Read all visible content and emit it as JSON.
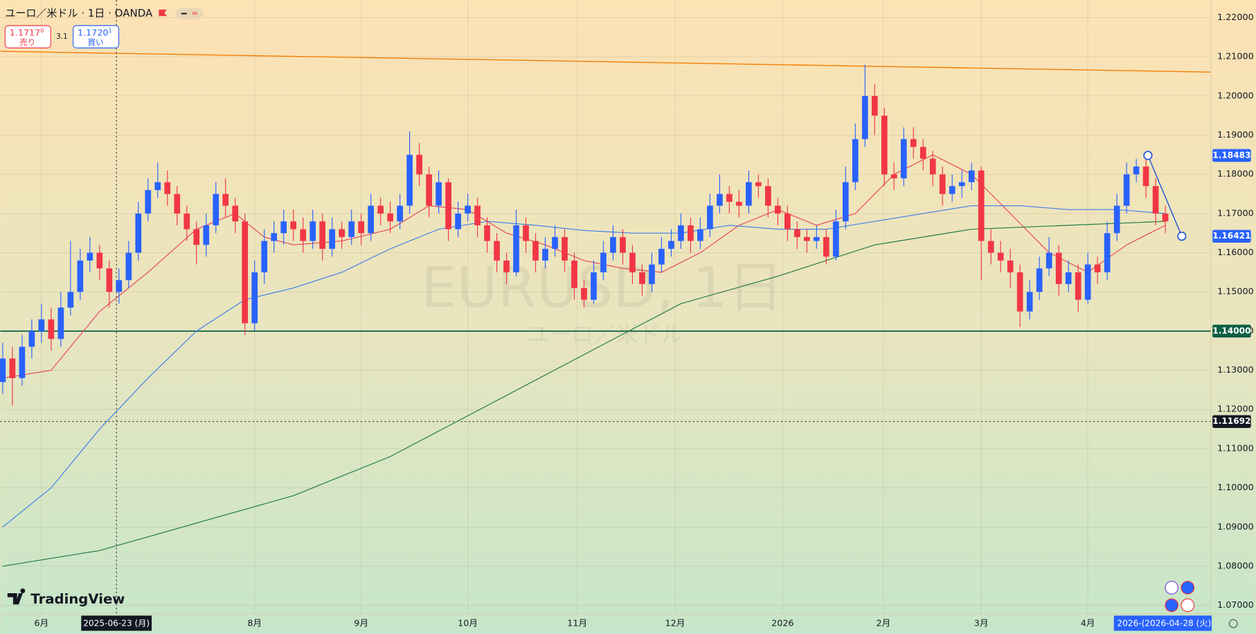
{
  "toolbar": {
    "symbol": "ユーロ／米ドル · 1日 · OANDA",
    "bid": {
      "price": "1.1717",
      "sup": "0",
      "label": "売り"
    },
    "spread": "3.1",
    "ask": {
      "price": "1.1720",
      "sup": "1",
      "label": "買い"
    },
    "brand": "TradingView"
  },
  "chart_data": {
    "type": "candlestick",
    "watermark": "EURUSD, 1日",
    "watermark_sub": "ユーロ／米ドル",
    "up_color": "#2962ff",
    "down_color": "#f23645",
    "grid": true,
    "x": [
      0,
      1,
      2,
      3,
      4,
      5,
      6,
      7,
      8,
      9,
      10,
      11,
      12,
      13,
      14,
      15,
      16,
      17,
      18,
      19,
      20,
      21,
      22,
      23,
      24,
      25,
      26,
      27,
      28,
      29,
      30,
      31,
      32,
      33,
      34,
      35,
      36,
      37,
      38,
      39,
      40,
      41,
      42,
      43,
      44,
      45,
      46,
      47,
      48,
      49,
      50,
      51,
      52,
      53,
      54,
      55,
      56,
      57,
      58,
      59,
      60,
      61,
      62,
      63,
      64,
      65,
      66,
      67,
      68,
      69,
      70,
      71,
      72,
      73,
      74,
      75,
      76,
      77,
      78,
      79,
      80,
      81,
      82,
      83,
      84,
      85,
      86,
      87,
      88,
      89,
      90,
      91,
      92,
      93,
      94,
      95,
      96,
      97,
      98,
      99,
      100,
      101,
      102,
      103,
      104,
      105,
      106,
      107,
      108,
      109,
      110,
      111,
      112,
      113,
      114,
      115,
      116,
      117,
      118,
      119,
      120
    ],
    "open": [
      1.127,
      1.133,
      1.128,
      1.136,
      1.14,
      1.143,
      1.138,
      1.146,
      1.15,
      1.158,
      1.16,
      1.156,
      1.15,
      1.153,
      1.16,
      1.17,
      1.176,
      1.178,
      1.175,
      1.17,
      1.166,
      1.162,
      1.167,
      1.175,
      1.172,
      1.168,
      1.142,
      1.155,
      1.163,
      1.165,
      1.168,
      1.166,
      1.163,
      1.168,
      1.161,
      1.166,
      1.164,
      1.168,
      1.165,
      1.172,
      1.17,
      1.168,
      1.172,
      1.185,
      1.18,
      1.172,
      1.178,
      1.166,
      1.17,
      1.172,
      1.167,
      1.163,
      1.158,
      1.155,
      1.167,
      1.163,
      1.158,
      1.161,
      1.164,
      1.158,
      1.151,
      1.148,
      1.155,
      1.16,
      1.164,
      1.16,
      1.155,
      1.152,
      1.157,
      1.161,
      1.163,
      1.167,
      1.163,
      1.166,
      1.172,
      1.175,
      1.173,
      1.172,
      1.178,
      1.177,
      1.172,
      1.17,
      1.166,
      1.164,
      1.163,
      1.164,
      1.159,
      1.168,
      1.178,
      1.189,
      1.2,
      1.195,
      1.18,
      1.179,
      1.189,
      1.187,
      1.184,
      1.18,
      1.175,
      1.177,
      1.178,
      1.181,
      1.163,
      1.16,
      1.158,
      1.155,
      1.145,
      1.15,
      1.156,
      1.16,
      1.152,
      1.155,
      1.148,
      1.157,
      1.155,
      1.165,
      1.172,
      1.18,
      1.182,
      1.177,
      1.17
    ],
    "high": [
      1.137,
      1.136,
      1.139,
      1.143,
      1.147,
      1.146,
      1.15,
      1.163,
      1.161,
      1.164,
      1.162,
      1.158,
      1.156,
      1.163,
      1.173,
      1.179,
      1.183,
      1.181,
      1.177,
      1.172,
      1.168,
      1.17,
      1.178,
      1.179,
      1.174,
      1.17,
      1.158,
      1.166,
      1.168,
      1.171,
      1.171,
      1.169,
      1.171,
      1.17,
      1.169,
      1.168,
      1.171,
      1.17,
      1.175,
      1.174,
      1.173,
      1.175,
      1.191,
      1.188,
      1.182,
      1.181,
      1.179,
      1.173,
      1.175,
      1.174,
      1.169,
      1.165,
      1.16,
      1.171,
      1.169,
      1.165,
      1.164,
      1.167,
      1.166,
      1.16,
      1.153,
      1.158,
      1.163,
      1.167,
      1.166,
      1.162,
      1.157,
      1.16,
      1.164,
      1.166,
      1.17,
      1.169,
      1.169,
      1.175,
      1.18,
      1.177,
      1.176,
      1.181,
      1.18,
      1.179,
      1.174,
      1.172,
      1.168,
      1.166,
      1.167,
      1.166,
      1.171,
      1.182,
      1.193,
      1.208,
      1.203,
      1.197,
      1.183,
      1.192,
      1.192,
      1.189,
      1.186,
      1.182,
      1.18,
      1.181,
      1.183,
      1.182,
      1.166,
      1.163,
      1.161,
      1.157,
      1.153,
      1.159,
      1.164,
      1.162,
      1.158,
      1.157,
      1.16,
      1.159,
      1.168,
      1.175,
      1.183,
      1.184,
      1.184,
      1.179,
      1.172
    ],
    "low": [
      1.124,
      1.121,
      1.126,
      1.133,
      1.137,
      1.135,
      1.136,
      1.144,
      1.148,
      1.155,
      1.153,
      1.146,
      1.147,
      1.151,
      1.158,
      1.168,
      1.174,
      1.172,
      1.167,
      1.163,
      1.157,
      1.159,
      1.165,
      1.169,
      1.165,
      1.139,
      1.14,
      1.152,
      1.16,
      1.162,
      1.163,
      1.16,
      1.161,
      1.158,
      1.159,
      1.161,
      1.162,
      1.162,
      1.163,
      1.167,
      1.165,
      1.166,
      1.17,
      1.177,
      1.169,
      1.17,
      1.163,
      1.164,
      1.168,
      1.164,
      1.16,
      1.155,
      1.152,
      1.154,
      1.16,
      1.155,
      1.156,
      1.159,
      1.155,
      1.148,
      1.146,
      1.147,
      1.153,
      1.158,
      1.157,
      1.152,
      1.149,
      1.15,
      1.155,
      1.159,
      1.161,
      1.16,
      1.161,
      1.164,
      1.17,
      1.17,
      1.169,
      1.17,
      1.174,
      1.169,
      1.167,
      1.163,
      1.161,
      1.16,
      1.161,
      1.157,
      1.158,
      1.166,
      1.176,
      1.187,
      1.19,
      1.177,
      1.176,
      1.177,
      1.184,
      1.181,
      1.177,
      1.172,
      1.173,
      1.174,
      1.176,
      1.153,
      1.157,
      1.155,
      1.151,
      1.141,
      1.143,
      1.148,
      1.154,
      1.149,
      1.15,
      1.145,
      1.147,
      1.152,
      1.153,
      1.163,
      1.17,
      1.178,
      1.174,
      1.167,
      1.165
    ],
    "close": [
      1.133,
      1.128,
      1.136,
      1.14,
      1.143,
      1.138,
      1.146,
      1.15,
      1.158,
      1.16,
      1.156,
      1.15,
      1.153,
      1.16,
      1.17,
      1.176,
      1.178,
      1.175,
      1.17,
      1.166,
      1.162,
      1.167,
      1.175,
      1.172,
      1.168,
      1.142,
      1.155,
      1.163,
      1.165,
      1.168,
      1.166,
      1.163,
      1.168,
      1.161,
      1.166,
      1.164,
      1.168,
      1.165,
      1.172,
      1.17,
      1.168,
      1.172,
      1.185,
      1.18,
      1.172,
      1.178,
      1.166,
      1.17,
      1.172,
      1.167,
      1.163,
      1.158,
      1.155,
      1.167,
      1.163,
      1.158,
      1.161,
      1.164,
      1.158,
      1.151,
      1.148,
      1.155,
      1.16,
      1.164,
      1.16,
      1.155,
      1.152,
      1.157,
      1.161,
      1.163,
      1.167,
      1.163,
      1.166,
      1.172,
      1.175,
      1.173,
      1.172,
      1.178,
      1.177,
      1.172,
      1.17,
      1.166,
      1.164,
      1.163,
      1.164,
      1.159,
      1.168,
      1.178,
      1.189,
      1.2,
      1.195,
      1.18,
      1.179,
      1.189,
      1.187,
      1.184,
      1.18,
      1.175,
      1.177,
      1.178,
      1.181,
      1.163,
      1.16,
      1.158,
      1.155,
      1.145,
      1.15,
      1.156,
      1.16,
      1.152,
      1.155,
      1.148,
      1.157,
      1.155,
      1.165,
      1.172,
      1.18,
      1.182,
      1.177,
      1.17,
      1.168
    ],
    "series": [
      {
        "color": "#e8435a",
        "x": [
          0,
          5,
          10,
          15,
          20,
          24,
          27,
          30,
          35,
          40,
          44,
          48,
          52,
          56,
          60,
          64,
          68,
          72,
          76,
          80,
          84,
          88,
          92,
          96,
          100,
          104,
          108,
          112,
          116,
          120
        ],
        "values": [
          1.128,
          1.13,
          1.145,
          1.155,
          1.166,
          1.17,
          1.164,
          1.162,
          1.163,
          1.166,
          1.172,
          1.171,
          1.165,
          1.162,
          1.158,
          1.156,
          1.155,
          1.16,
          1.167,
          1.171,
          1.167,
          1.17,
          1.18,
          1.185,
          1.18,
          1.17,
          1.16,
          1.155,
          1.162,
          1.167
        ]
      },
      {
        "color": "#3f7ee8",
        "x": [
          0,
          5,
          10,
          15,
          20,
          25,
          30,
          35,
          40,
          45,
          50,
          55,
          60,
          65,
          70,
          75,
          80,
          85,
          90,
          95,
          100,
          105,
          110,
          115,
          120
        ],
        "values": [
          1.09,
          1.1,
          1.115,
          1.128,
          1.14,
          1.148,
          1.151,
          1.155,
          1.161,
          1.166,
          1.168,
          1.167,
          1.1657,
          1.165,
          1.165,
          1.167,
          1.166,
          1.166,
          1.168,
          1.17,
          1.172,
          1.172,
          1.171,
          1.171,
          1.17
        ]
      },
      {
        "color": "#1f7a45",
        "x": [
          0,
          10,
          20,
          30,
          40,
          50,
          60,
          70,
          80,
          85,
          90,
          100,
          110,
          120
        ],
        "values": [
          1.08,
          1.084,
          1.091,
          1.098,
          1.108,
          1.121,
          1.134,
          1.147,
          1.154,
          1.158,
          1.162,
          1.166,
          1.167,
          1.168
        ]
      }
    ],
    "trendline": {
      "x": [
        -0.25,
        124.7
      ],
      "values": [
        1.2114,
        1.2061
      ],
      "color": "#f57c00"
    },
    "drawing": {
      "x": [
        118.2,
        121.7
      ],
      "values": [
        1.18483,
        1.16421
      ],
      "color": "#2a5bd7"
    },
    "level": {
      "value": 1.14,
      "color": "#0b5e45"
    },
    "crosshair": {
      "x": 11.74,
      "value": 1.11692,
      "x_label": "2025-06-23 (月)"
    },
    "end_label": {
      "x": 121.3,
      "label": "2026-04-28 (火)",
      "hidden_label": "2026-("
    },
    "price_labels": [
      {
        "value": 1.18483,
        "label": "1.18483",
        "color": "#2962ff"
      },
      {
        "value": 1.16421,
        "label": "1.16421",
        "color": "#2962ff"
      },
      {
        "value": 1.14,
        "label": "1.14000",
        "color": "#0b5e45"
      },
      {
        "value": 1.11692,
        "label": "1.11692",
        "color": "#131722"
      }
    ],
    "xlim": [
      -0.25,
      124.7
    ],
    "xticks": [
      {
        "value": 4,
        "label": "6月"
      },
      {
        "value": 26,
        "label": "8月"
      },
      {
        "value": 37,
        "label": "9月"
      },
      {
        "value": 48,
        "label": "10月"
      },
      {
        "value": 59.3,
        "label": "11月"
      },
      {
        "value": 69.4,
        "label": "12月"
      },
      {
        "value": 80.5,
        "label": "2026"
      },
      {
        "value": 90.9,
        "label": "2月"
      },
      {
        "value": 101,
        "label": "3月"
      },
      {
        "value": 112,
        "label": "4月"
      }
    ],
    "ylim": [
      1.0678,
      1.2245
    ],
    "yticks": [
      {
        "value": 1.07,
        "label": "1.07000"
      },
      {
        "value": 1.08,
        "label": "1.08000"
      },
      {
        "value": 1.09,
        "label": "1.09000"
      },
      {
        "value": 1.1,
        "label": "1.10000"
      },
      {
        "value": 1.11,
        "label": "1.11000"
      },
      {
        "value": 1.12,
        "label": "1.12000"
      },
      {
        "value": 1.13,
        "label": "1.13000"
      },
      {
        "value": 1.14,
        "label": "1.14000"
      },
      {
        "value": 1.15,
        "label": "1.15000"
      },
      {
        "value": 1.16,
        "label": "1.16000"
      },
      {
        "value": 1.17,
        "label": "1.17000"
      },
      {
        "value": 1.18,
        "label": "1.18000"
      },
      {
        "value": 1.19,
        "label": "1.19000"
      },
      {
        "value": 1.2,
        "label": "1.20000"
      },
      {
        "value": 1.21,
        "label": "1.21000"
      },
      {
        "value": 1.22,
        "label": "1.22000"
      }
    ]
  }
}
